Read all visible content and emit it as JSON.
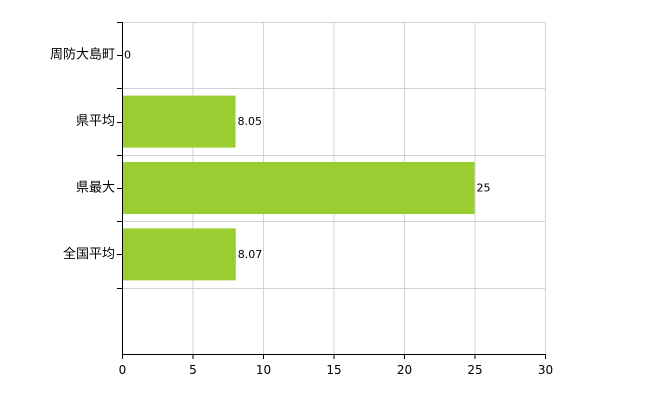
{
  "chart_data": {
    "type": "bar",
    "orientation": "horizontal",
    "categories": [
      "周防大島町",
      "県平均",
      "県最大",
      "全国平均"
    ],
    "values": [
      0,
      8.05,
      25,
      8.07
    ],
    "data_labels": [
      "0",
      "8.05",
      "25",
      "8.07"
    ],
    "xlim": [
      0,
      30
    ],
    "x_ticks": [
      0,
      5,
      10,
      15,
      20,
      25,
      30
    ],
    "x_tick_labels": [
      "0",
      "5",
      "10",
      "15",
      "20",
      "25",
      "30"
    ],
    "grid": true,
    "legend": "none",
    "colors": {
      "bar": "#9acd32",
      "grid": "#d3d3d3",
      "axis": "#000000"
    }
  }
}
